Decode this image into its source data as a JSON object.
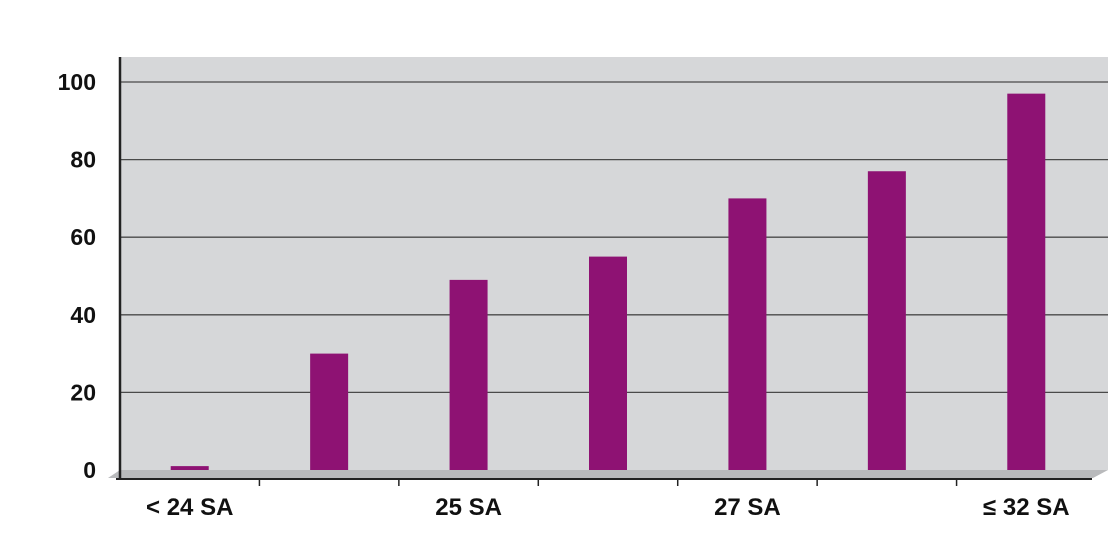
{
  "chart_data": {
    "type": "bar",
    "title": "",
    "xlabel": "",
    "ylabel": "",
    "ylim": [
      0,
      100
    ],
    "yticks": [
      0,
      20,
      40,
      60,
      80,
      100
    ],
    "grid": true,
    "legend": "none",
    "categories": [
      "< 24 SA",
      "",
      "25 SA",
      "",
      "27 SA",
      "",
      "≤ 32 SA"
    ],
    "values": [
      1,
      30,
      49,
      55,
      70,
      77,
      97
    ],
    "colors": {
      "bar": "#8e1273",
      "plot_background": "#d6d7d9",
      "floor": "#b9babc",
      "gridline": "#4a4a4a",
      "axis": "#222222"
    }
  }
}
